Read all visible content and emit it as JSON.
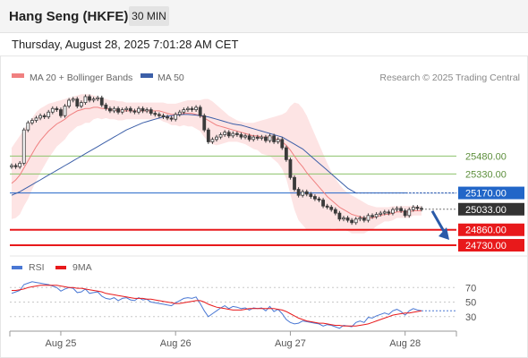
{
  "header": {
    "title": "Hang Seng (HKFE)",
    "interval": "30 MIN",
    "timestamp": "Thursday, August 28, 2025 7:01:28 AM CET"
  },
  "legend": {
    "ma20_label": "MA 20 + Bollinger Bands",
    "ma50_label": "MA 50",
    "credit": "Research © 2025 Trading Central",
    "rsi_label": "RSI",
    "rsi_ma_label": "9MA"
  },
  "colors": {
    "candle": "#3a3a3a",
    "ma20": "#f08080",
    "bollinger_fill": "#fde4e4",
    "ma50": "#3c5fa8",
    "resistance": "#8dc36b",
    "support": "#e8191b",
    "pivot": "#2266c8",
    "last_price": "#333333",
    "rsi": "#4a78d4",
    "rsi_ma": "#e8191b",
    "arrow": "#2a5aa8"
  },
  "chart_data": [
    {
      "type": "candlestick",
      "title": "Hang Seng (HKFE)",
      "interval": "30 MIN",
      "x_tick_labels": [
        "Aug 25",
        "Aug 26",
        "Aug 27",
        "Aug 28"
      ],
      "ylim": [
        24700,
        26040
      ],
      "grid": false,
      "price_levels": [
        {
          "role": "resistance",
          "value": 25480.0,
          "label": "25480.00"
        },
        {
          "role": "resistance",
          "value": 25330.0,
          "label": "25330.00"
        },
        {
          "role": "pivot",
          "value": 25170.0,
          "label": "25170.00"
        },
        {
          "role": "last",
          "value": 25033.0,
          "label": "25033.00"
        },
        {
          "role": "support",
          "value": 24860.0,
          "label": "24860.00"
        },
        {
          "role": "support",
          "value": 24730.0,
          "label": "24730.00"
        }
      ],
      "close": [
        25400,
        25390,
        25420,
        25700,
        25760,
        25780,
        25800,
        25820,
        25810,
        25850,
        25880,
        25870,
        25820,
        25900,
        25950,
        25960,
        25900,
        25930,
        25980,
        25950,
        25960,
        25970,
        25910,
        25880,
        25860,
        25880,
        25850,
        25870,
        25880,
        25860,
        25850,
        25880,
        25860,
        25870,
        25840,
        25830,
        25820,
        25810,
        25800,
        25790,
        25830,
        25850,
        25870,
        25880,
        25870,
        25890,
        25820,
        25700,
        25600,
        25620,
        25640,
        25660,
        25680,
        25650,
        25670,
        25660,
        25640,
        25650,
        25620,
        25640,
        25630,
        25640,
        25610,
        25650,
        25600,
        25620,
        25550,
        25450,
        25300,
        25200,
        25150,
        25180,
        25160,
        25140,
        25120,
        25110,
        25060,
        25050,
        25030,
        25000,
        24950,
        24960,
        24940,
        24920,
        24950,
        24960,
        24940,
        24980,
        24970,
        24990,
        25000,
        25010,
        25000,
        25030,
        25040,
        25020,
        24980,
        25030,
        25050,
        25040,
        25033
      ],
      "ma20": [
        25250,
        25280,
        25320,
        25380,
        25440,
        25500,
        25560,
        25610,
        25650,
        25690,
        25720,
        25750,
        25770,
        25790,
        25820,
        25840,
        25860,
        25870,
        25880,
        25880,
        25890,
        25890,
        25880,
        25880,
        25870,
        25870,
        25860,
        25860,
        25860,
        25860,
        25860,
        25860,
        25860,
        25860,
        25860,
        25860,
        25860,
        25850,
        25840,
        25830,
        25830,
        25830,
        25840,
        25840,
        25840,
        25830,
        25820,
        25800,
        25780,
        25760,
        25740,
        25730,
        25720,
        25710,
        25700,
        25690,
        25680,
        25670,
        25660,
        25650,
        25650,
        25640,
        25640,
        25640,
        25630,
        25620,
        25600,
        25570,
        25530,
        25480,
        25430,
        25390,
        25340,
        25300,
        25260,
        25220,
        25180,
        25140,
        25110,
        25080,
        25050,
        25030,
        25010,
        24990,
        24980,
        24970,
        24960,
        24960,
        24960,
        24970,
        24980,
        24990,
        24990,
        25000,
        25010,
        25010,
        25010,
        25010,
        25020,
        25020,
        25020
      ],
      "ma50": [
        25150,
        25165,
        25180,
        25200,
        25220,
        25240,
        25260,
        25280,
        25300,
        25320,
        25340,
        25360,
        25380,
        25400,
        25420,
        25440,
        25460,
        25480,
        25500,
        25520,
        25540,
        25560,
        25580,
        25600,
        25620,
        25640,
        25660,
        25680,
        25700,
        25715,
        25730,
        25745,
        25760,
        25770,
        25780,
        25790,
        25800,
        25810,
        25815,
        25820,
        25825,
        25828,
        25830,
        25830,
        25828,
        25825,
        25820,
        25815,
        25810,
        25800,
        25790,
        25780,
        25770,
        25760,
        25750,
        25745,
        25740,
        25730,
        25720,
        25710,
        25700,
        25690,
        25680,
        25670,
        25660,
        25650,
        25640,
        25620,
        25600,
        25580,
        25560,
        25540,
        25510,
        25480,
        25450,
        25420,
        25390,
        25360,
        25330,
        25300,
        25270,
        25240,
        25210,
        25190,
        25170
      ],
      "bollinger_upper": [
        25550,
        25600,
        25650,
        25700,
        25760,
        25800,
        25850,
        25880,
        25900,
        25920,
        25930,
        25940,
        25950,
        25960,
        25970,
        25980,
        25990,
        26000,
        26000,
        26000,
        25990,
        25980,
        25970,
        25960,
        25950,
        25950,
        25940,
        25940,
        25930,
        25930,
        25930,
        25930,
        25930,
        25930,
        25930,
        25930,
        25930,
        25930,
        25920,
        25920,
        25920,
        25930,
        25940,
        25950,
        25950,
        25950,
        25950,
        25960,
        25960,
        25940,
        25910,
        25880,
        25850,
        25820,
        25800,
        25780,
        25770,
        25760,
        25760,
        25760,
        25770,
        25780,
        25790,
        25800,
        25810,
        25820,
        25830,
        25850,
        25900,
        25930,
        25920,
        25880,
        25820,
        25740,
        25660,
        25580,
        25500,
        25420,
        25350,
        25290,
        25240,
        25200,
        25170,
        25150,
        25130,
        25110,
        25090,
        25070,
        25060,
        25050,
        25050,
        25050,
        25050,
        25060,
        25060,
        25060,
        25060,
        25060,
        25060,
        25060,
        25060
      ],
      "bollinger_lower": [
        24950,
        24960,
        24990,
        25060,
        25120,
        25200,
        25270,
        25340,
        25400,
        25460,
        25510,
        25560,
        25590,
        25620,
        25670,
        25700,
        25730,
        25740,
        25760,
        25760,
        25790,
        25800,
        25790,
        25800,
        25790,
        25790,
        25780,
        25780,
        25790,
        25790,
        25790,
        25790,
        25790,
        25790,
        25790,
        25790,
        25790,
        25770,
        25760,
        25740,
        25740,
        25730,
        25740,
        25730,
        25730,
        25710,
        25690,
        25640,
        25600,
        25580,
        25570,
        25580,
        25590,
        25600,
        25600,
        25600,
        25590,
        25580,
        25560,
        25540,
        25530,
        25500,
        25490,
        25480,
        25450,
        25420,
        25370,
        25290,
        25160,
        25030,
        24940,
        24900,
        24860,
        24860,
        24860,
        24860,
        24860,
        24860,
        24870,
        24870,
        24860,
        24860,
        24850,
        24830,
        24830,
        24830,
        24830,
        24850,
        24860,
        24890,
        24910,
        24930,
        24930,
        24940,
        24960,
        24960,
        24960,
        24960,
        24980,
        24980,
        24980
      ]
    },
    {
      "type": "line",
      "title": "RSI",
      "ylim": [
        10,
        90
      ],
      "y_tick_labels": [
        "70",
        "50",
        "30"
      ],
      "series": [
        {
          "name": "RSI",
          "values": [
            62,
            64,
            66,
            74,
            76,
            78,
            77,
            76,
            75,
            74,
            72,
            70,
            65,
            68,
            70,
            69,
            63,
            64,
            68,
            62,
            63,
            64,
            58,
            55,
            54,
            56,
            52,
            55,
            56,
            53,
            52,
            56,
            53,
            54,
            50,
            49,
            48,
            47,
            46,
            45,
            49,
            52,
            55,
            56,
            55,
            57,
            48,
            38,
            30,
            34,
            38,
            42,
            45,
            41,
            44,
            43,
            41,
            42,
            39,
            42,
            41,
            42,
            38,
            44,
            37,
            40,
            34,
            26,
            22,
            20,
            21,
            24,
            23,
            22,
            21,
            20,
            17,
            19,
            18,
            16,
            14,
            18,
            17,
            16,
            22,
            24,
            22,
            29,
            28,
            31,
            33,
            35,
            33,
            38,
            40,
            37,
            32,
            38,
            41,
            39,
            38
          ]
        },
        {
          "name": "9MA",
          "values": [
            66,
            66,
            67,
            68,
            70,
            71,
            72,
            73,
            73,
            73,
            73,
            73,
            72,
            71,
            70,
            70,
            69,
            69,
            68,
            67,
            66,
            65,
            64,
            62,
            61,
            60,
            59,
            58,
            57,
            56,
            55,
            55,
            55,
            54,
            54,
            53,
            52,
            51,
            50,
            49,
            48,
            48,
            49,
            50,
            51,
            52,
            52,
            50,
            47,
            45,
            43,
            42,
            41,
            40,
            39,
            39,
            39,
            40,
            41,
            41,
            41,
            41,
            41,
            41,
            41,
            40,
            39,
            37,
            34,
            31,
            28,
            26,
            24,
            23,
            22,
            21,
            21,
            20,
            19,
            18,
            18,
            17,
            17,
            17,
            17,
            18,
            19,
            20,
            22,
            24,
            26,
            28,
            30,
            32,
            33,
            34,
            35,
            35,
            36,
            37,
            38
          ]
        }
      ]
    }
  ]
}
